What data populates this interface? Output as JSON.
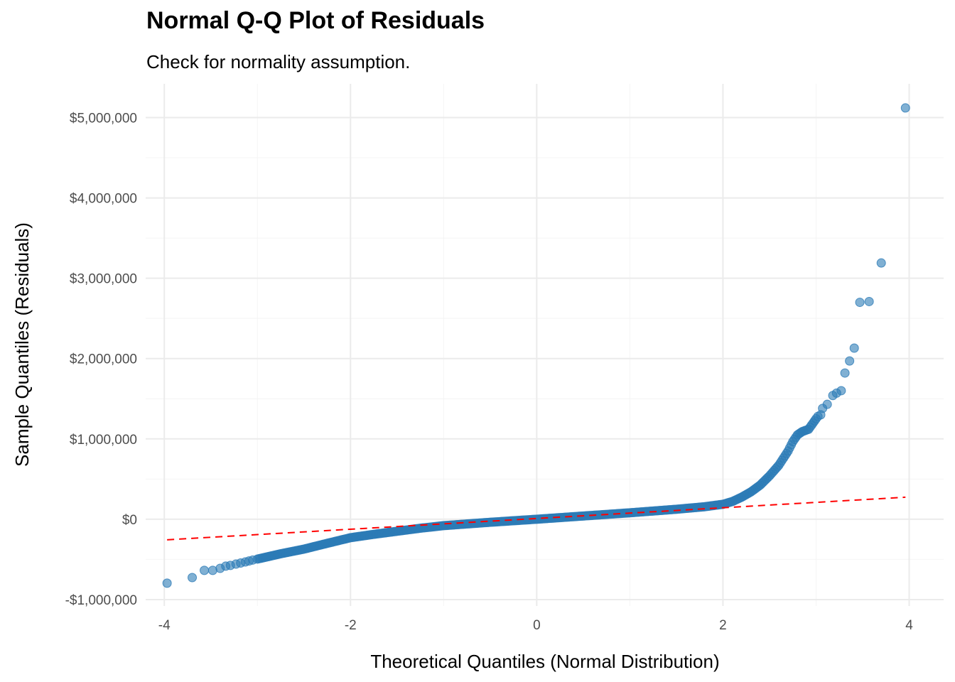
{
  "chart_data": {
    "type": "scatter",
    "title": "Normal Q-Q Plot of Residuals",
    "subtitle": "Check for normality assumption.",
    "xlabel": "Theoretical Quantiles (Normal Distribution)",
    "ylabel": "Sample Quantiles (Residuals)",
    "xlim": [
      -4.2,
      4.37
    ],
    "ylim": [
      -1080000,
      5420000
    ],
    "x_ticks": [
      -4,
      -2,
      0,
      2,
      4
    ],
    "x_tick_labels": [
      "-4",
      "-2",
      "0",
      "2",
      "4"
    ],
    "y_ticks": [
      -1000000,
      0,
      1000000,
      2000000,
      3000000,
      4000000,
      5000000
    ],
    "y_tick_labels": [
      "-$1,000,000",
      "$0",
      "$1,000,000",
      "$2,000,000",
      "$3,000,000",
      "$4,000,000",
      "$5,000,000"
    ],
    "grid": true,
    "point_color": "#2c7bb6",
    "line_color": "#ff0000",
    "reference_line": {
      "x": [
        -3.97,
        3.96
      ],
      "y": [
        -256000,
        274000
      ],
      "style": "dashed"
    },
    "tail_points_low": [
      [
        -3.97,
        -796000
      ],
      [
        -3.7,
        -726000
      ],
      [
        -3.57,
        -637000
      ],
      [
        -3.48,
        -637000
      ],
      [
        -3.4,
        -611000
      ],
      [
        -3.34,
        -584000
      ],
      [
        -3.29,
        -575000
      ],
      [
        -3.23,
        -558000
      ],
      [
        -3.18,
        -545000
      ],
      [
        -3.13,
        -532000
      ],
      [
        -3.09,
        -520000
      ],
      [
        -3.05,
        -508000
      ]
    ],
    "curve_profile": [
      [
        -3.0,
        -496000
      ],
      [
        -2.75,
        -430000
      ],
      [
        -2.5,
        -372000
      ],
      [
        -2.25,
        -300000
      ],
      [
        -2.0,
        -230000
      ],
      [
        -1.75,
        -188000
      ],
      [
        -1.5,
        -150000
      ],
      [
        -1.25,
        -112000
      ],
      [
        -1.0,
        -80000
      ],
      [
        -0.5,
        -38000
      ],
      [
        0.0,
        0
      ],
      [
        0.5,
        40000
      ],
      [
        1.0,
        80000
      ],
      [
        1.5,
        124000
      ],
      [
        1.8,
        155000
      ],
      [
        2.0,
        186000
      ],
      [
        2.1,
        220000
      ],
      [
        2.2,
        274000
      ],
      [
        2.3,
        340000
      ],
      [
        2.4,
        425000
      ],
      [
        2.5,
        540000
      ],
      [
        2.6,
        672000
      ],
      [
        2.7,
        850000
      ],
      [
        2.75,
        965000
      ],
      [
        2.8,
        1050000
      ],
      [
        2.85,
        1090000
      ],
      [
        2.92,
        1120000
      ],
      [
        3.0,
        1250000
      ]
    ],
    "tail_points_high": [
      [
        3.02,
        1280000
      ],
      [
        3.05,
        1300000
      ],
      [
        3.07,
        1380000
      ],
      [
        3.12,
        1430000
      ],
      [
        3.18,
        1540000
      ],
      [
        3.22,
        1570000
      ],
      [
        3.27,
        1600000
      ],
      [
        3.31,
        1820000
      ],
      [
        3.36,
        1970000
      ],
      [
        3.41,
        2130000
      ],
      [
        3.47,
        2700000
      ],
      [
        3.57,
        2710000
      ],
      [
        3.7,
        3190000
      ],
      [
        3.96,
        5120000
      ]
    ]
  }
}
